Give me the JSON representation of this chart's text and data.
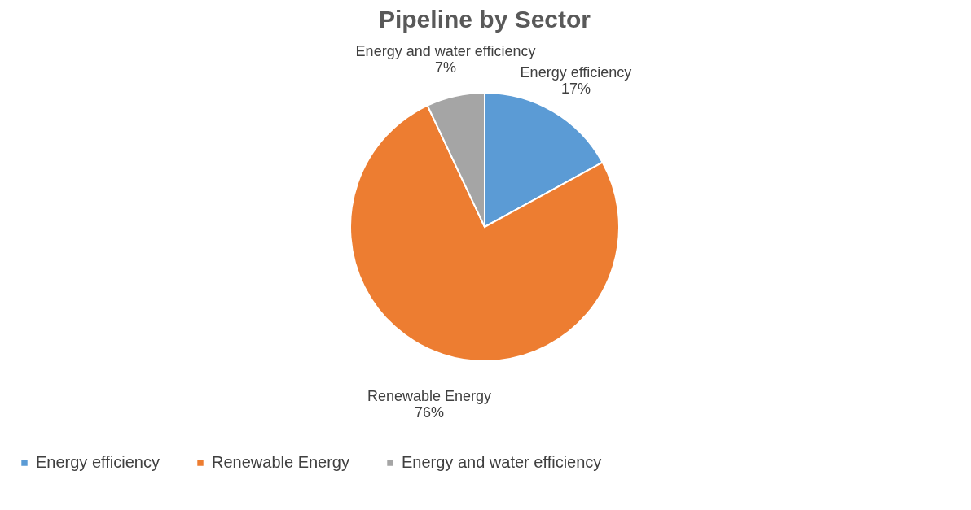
{
  "chart_data": {
    "type": "pie",
    "title": "Pipeline by Sector",
    "categories": [
      "Energy efficiency",
      "Renewable Energy",
      "Energy and water efficiency"
    ],
    "values": [
      17,
      76,
      7
    ],
    "colors": [
      "#5b9bd5",
      "#ed7d31",
      "#a5a5a5"
    ],
    "value_labels": [
      "17%",
      "76%",
      "7%"
    ],
    "legend": "bottom"
  }
}
